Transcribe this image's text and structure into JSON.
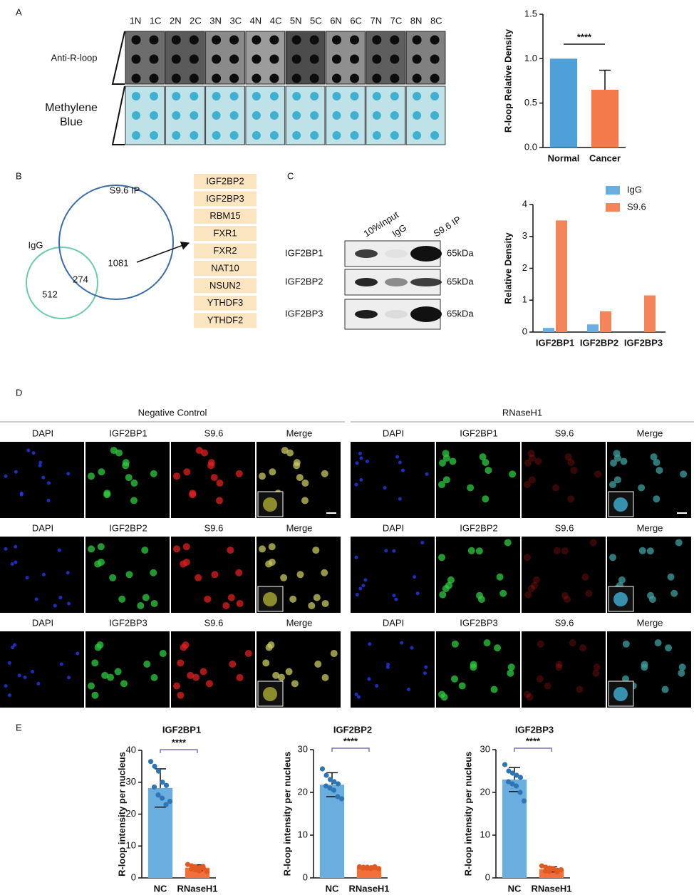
{
  "panel_labels": [
    "A",
    "B",
    "C",
    "D",
    "E"
  ],
  "dot_blot": {
    "lanes": [
      "1N",
      "1C",
      "2N",
      "2C",
      "3N",
      "3C",
      "4N",
      "4C",
      "5N",
      "5C",
      "6N",
      "6C",
      "7N",
      "7C",
      "8N",
      "8C"
    ],
    "rows": [
      "Anti-R-loop",
      "Methylene Blue"
    ]
  },
  "venn": {
    "igg_label": "IgG",
    "s96_label": "S9.6 IP",
    "igg_only": 512,
    "overlap": 274,
    "s96_only": 1081,
    "genes": [
      "IGF2BP2",
      "IGF2BP3",
      "RBM15",
      "FXR1",
      "FXR2",
      "NAT10",
      "NSUN2",
      "YTHDF3",
      "YTHDF2"
    ]
  },
  "western": {
    "columns": [
      "10%Input",
      "IgG",
      "S9.6 IP"
    ],
    "rows": [
      "IGF2BP1",
      "IGF2BP2",
      "IGF2BP3"
    ],
    "size_label": "65kDa"
  },
  "microscopy": {
    "conditions": [
      "Negative Control",
      "RNaseH1"
    ],
    "rows": [
      [
        "DAPI",
        "IGF2BP1",
        "S9.6",
        "Merge"
      ],
      [
        "DAPI",
        "IGF2BP2",
        "S9.6",
        "Merge"
      ],
      [
        "DAPI",
        "IGF2BP3",
        "S9.6",
        "Merge"
      ]
    ]
  },
  "chart_data": [
    {
      "type": "bar",
      "y_label": "R-loop Relative Density",
      "categories": [
        "Normal",
        "Cancer"
      ],
      "values": [
        1.0,
        0.65
      ],
      "errors": [
        null,
        0.22
      ],
      "colors": [
        "#4f9fd9",
        "#f47a4b"
      ],
      "ylim": [
        0,
        1.5
      ],
      "yticks": [
        {
          "value": 0,
          "label": "0.0"
        },
        {
          "value": 0.5,
          "label": "0.5"
        },
        {
          "value": 1,
          "label": "1.0"
        },
        {
          "value": 1.5,
          "label": "1.5"
        }
      ],
      "annotation": "****"
    },
    {
      "type": "bar",
      "y_label": "Relative Density",
      "categories": [
        "IGF2BP1",
        "IGF2BP2",
        "IGF2BP3"
      ],
      "series": [
        {
          "name": "IgG",
          "color": "#6aaee0",
          "values": [
            0.13,
            0.24,
            0
          ]
        },
        {
          "name": "S9.6",
          "color": "#f4845a",
          "values": [
            3.5,
            0.65,
            1.15
          ]
        }
      ],
      "ylim": [
        0,
        4
      ],
      "yticks": [
        0,
        1,
        2,
        3,
        4
      ]
    },
    {
      "type": "bar",
      "title": "IGF2BP1",
      "y_label": "R-loop intensity per nucleus",
      "categories": [
        "NC",
        "RNaseH1"
      ],
      "values": [
        28.2,
        3.2
      ],
      "errors": [
        6.0,
        0.9
      ],
      "colors": [
        "#6aaee0",
        "#f36f3c"
      ],
      "point_colors": [
        "#2f75b5",
        "#e05a22"
      ],
      "points": [
        [
          36.5,
          35,
          33.5,
          30,
          29,
          28.5,
          26,
          25,
          23,
          24
        ],
        [
          4.2,
          3.8,
          3.5,
          3.2,
          3.0,
          2.8,
          2.5,
          2.2,
          3.6,
          2.0
        ]
      ],
      "ylim": [
        0,
        40
      ],
      "yticks": [
        0,
        10,
        20,
        30,
        40
      ],
      "annotation": "****"
    },
    {
      "type": "bar",
      "title": "IGF2BP2",
      "y_label": "R-loop intensity per nucleus",
      "categories": [
        "NC",
        "RNaseH1"
      ],
      "values": [
        21.8,
        2.4
      ],
      "errors": [
        2.8,
        0.3
      ],
      "colors": [
        "#6aaee0",
        "#f36f3c"
      ],
      "point_colors": [
        "#2f75b5",
        "#e05a22"
      ],
      "points": [
        [
          25.5,
          24,
          23,
          22.5,
          22,
          21.5,
          21,
          20.5,
          19,
          18.5
        ],
        [
          2.6,
          2.5,
          2.5,
          2.4,
          2.4,
          2.3,
          2.3,
          2.2,
          2.6,
          2.2
        ]
      ],
      "ylim": [
        0,
        30
      ],
      "yticks": [
        0,
        10,
        20,
        30
      ],
      "annotation": "****"
    },
    {
      "type": "bar",
      "title": "IGF2BP3",
      "y_label": "R-loop intensity per nucleus",
      "categories": [
        "NC",
        "RNaseH1"
      ],
      "values": [
        23,
        2.0
      ],
      "errors": [
        2.8,
        0.6
      ],
      "colors": [
        "#6aaee0",
        "#f36f3c"
      ],
      "point_colors": [
        "#2f75b5",
        "#e05a22"
      ],
      "points": [
        [
          26.5,
          25,
          24.5,
          24,
          23.5,
          22.5,
          22,
          21.5,
          20,
          18
        ],
        [
          2.8,
          2.5,
          2.3,
          2.0,
          1.8,
          1.6,
          1.5,
          2.1,
          1.4,
          1.9
        ]
      ],
      "ylim": [
        0,
        30
      ],
      "yticks": [
        0,
        10,
        20,
        30
      ],
      "annotation": "****"
    }
  ]
}
